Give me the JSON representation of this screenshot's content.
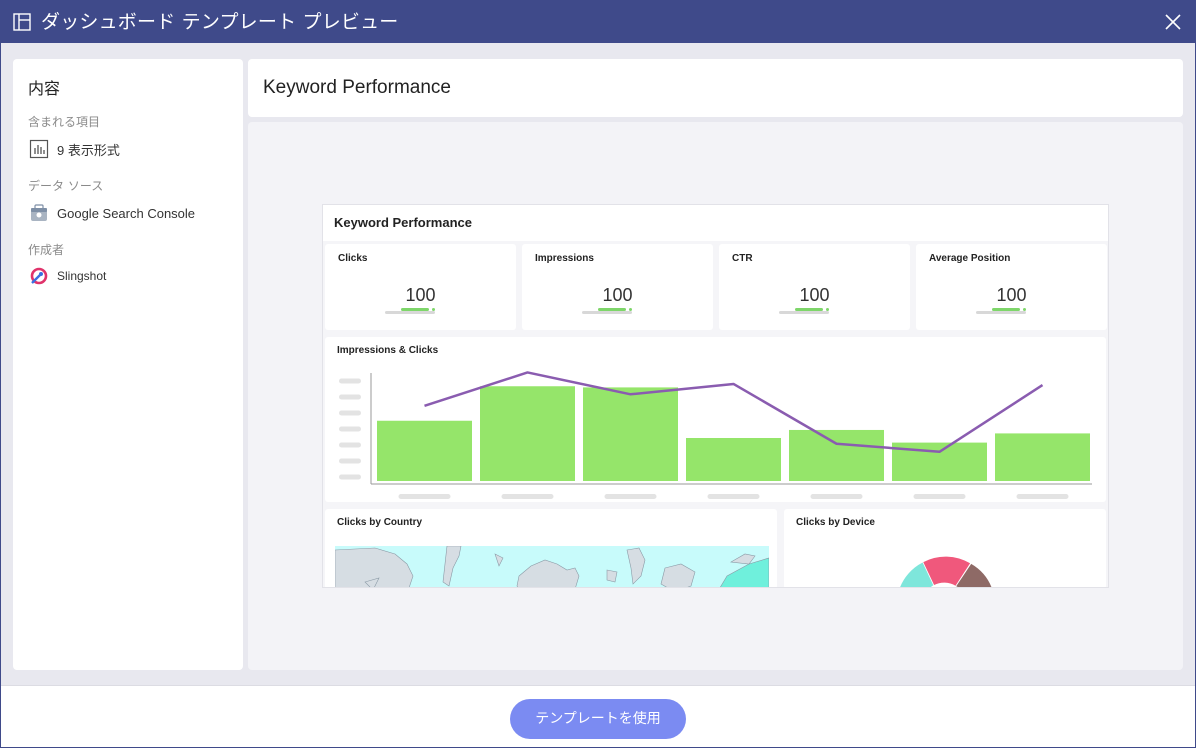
{
  "window": {
    "title": "ダッシュボード テンプレート プレビュー",
    "title_icon": "layout-icon",
    "close_icon": "close-icon"
  },
  "sidebar": {
    "heading": "内容",
    "sections": [
      {
        "label": "含まれる項目",
        "value": "9 表示形式",
        "icon": "bar-chart-icon"
      },
      {
        "label": "データ ソース",
        "value": "Google Search Console",
        "icon": "google-search-console-icon"
      },
      {
        "label": "作成者",
        "value": "Slingshot",
        "icon": "slingshot-logo-icon"
      }
    ]
  },
  "header": {
    "title": "Keyword Performance"
  },
  "dashboard": {
    "title": "Keyword Performance",
    "kpis": [
      {
        "label": "Clicks",
        "value": "100"
      },
      {
        "label": "Impressions",
        "value": "100"
      },
      {
        "label": "CTR",
        "value": "100"
      },
      {
        "label": "Average Position",
        "value": "100"
      }
    ],
    "combo_title": "Impressions & Clicks",
    "country_title": "Clicks by Country",
    "device_title": "Clicks by Device"
  },
  "chart_data": {
    "type": "bar",
    "title": "Impressions & Clicks",
    "categories": [
      "",
      "",
      "",
      "",
      "",
      "",
      ""
    ],
    "series": [
      {
        "type": "bar",
        "values": [
          55,
          85,
          84,
          40,
          47,
          36,
          44
        ],
        "color": "#95e56a"
      },
      {
        "type": "line",
        "values": [
          68,
          97,
          78,
          87,
          35,
          28,
          86
        ],
        "color": "#8a5cb0"
      }
    ],
    "ylim": [
      0,
      100
    ],
    "grid": false
  },
  "footer": {
    "use_button": "テンプレートを使用"
  },
  "colors": {
    "titlebar": "#3f4a8a",
    "accent_button": "#7b8bf2",
    "bar": "#95e56a",
    "line": "#8a5cb0"
  }
}
